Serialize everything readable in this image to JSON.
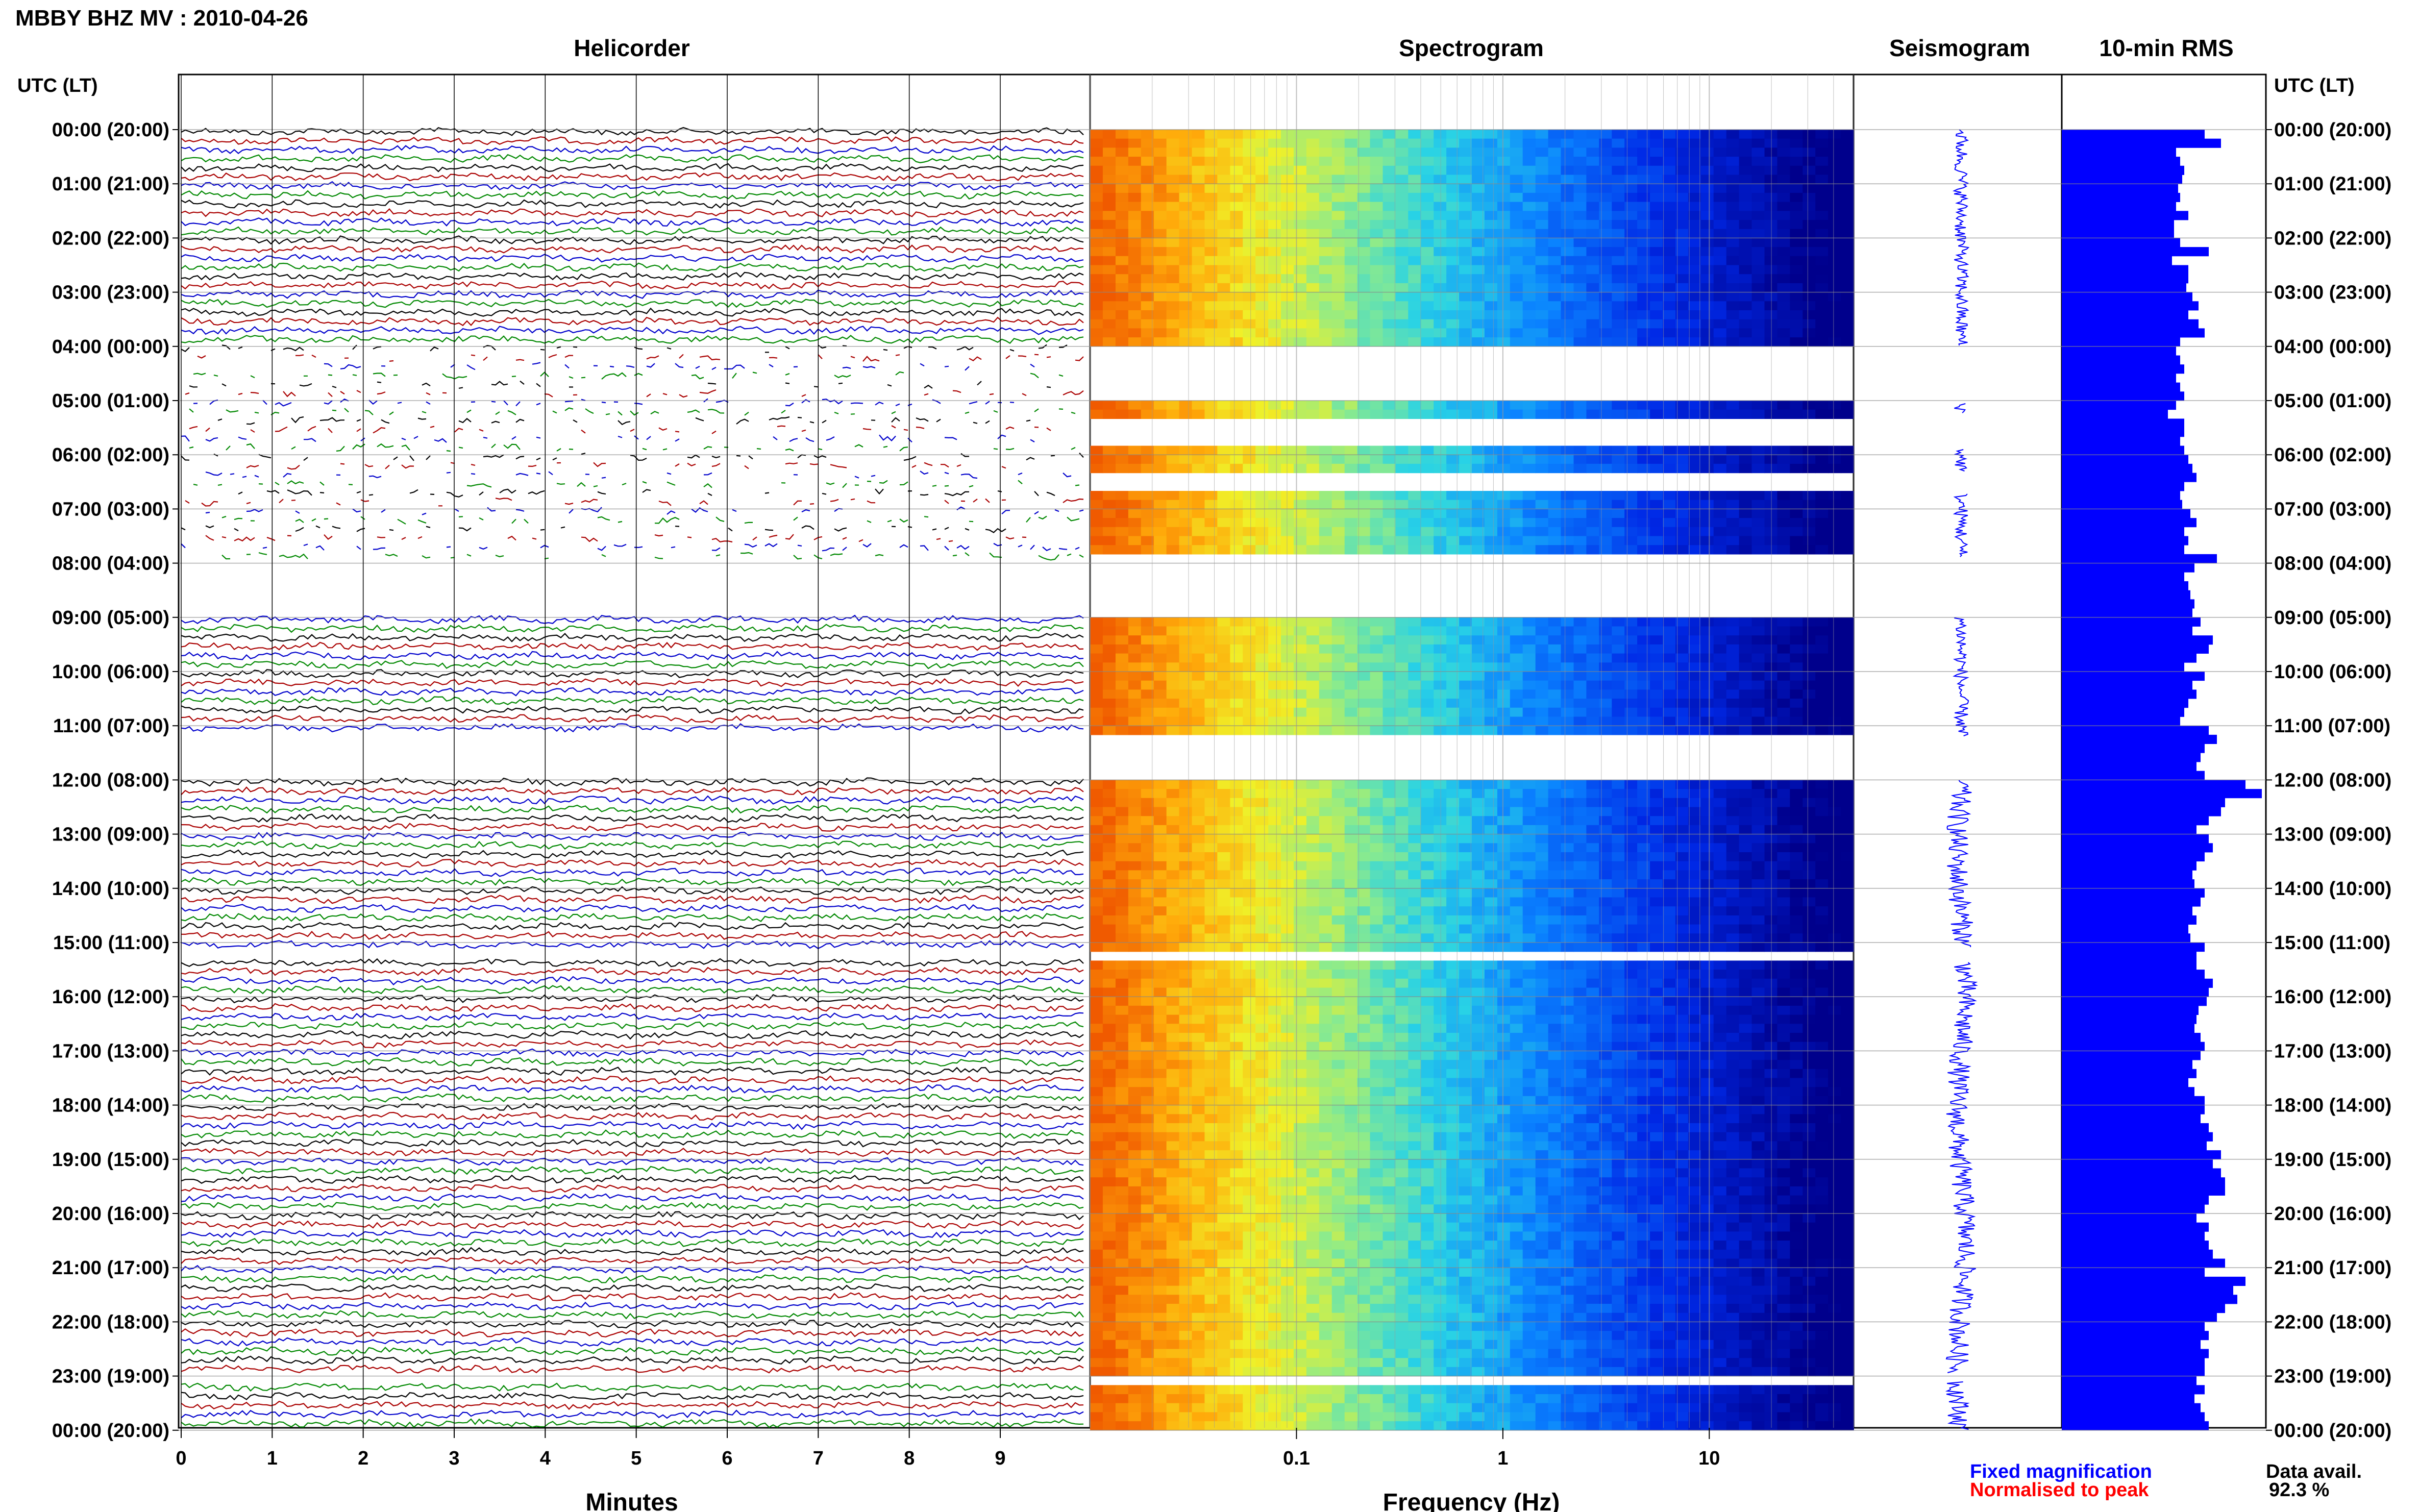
{
  "header": {
    "title": "MBBY BHZ MV : 2010-04-26",
    "utc_label_left": "UTC (LT)",
    "utc_label_right": "UTC (LT)"
  },
  "panels": {
    "helicorder": "Helicorder",
    "spectrogram": "Spectrogram",
    "seismogram": "Seismogram",
    "rms": "10-min RMS"
  },
  "axes": {
    "minutes_label": "Minutes",
    "frequency_label": "Frequency (Hz)",
    "minute_ticks": [
      "0",
      "1",
      "2",
      "3",
      "4",
      "5",
      "6",
      "7",
      "8",
      "9"
    ],
    "frequency_ticks": [
      {
        "value": 0.1,
        "label": "0.1"
      },
      {
        "value": 1,
        "label": "1"
      },
      {
        "value": 10,
        "label": "10"
      }
    ],
    "frequency_range_hz": [
      0.01,
      50
    ]
  },
  "time_labels": [
    "00:00 (20:00)",
    "01:00 (21:00)",
    "02:00 (22:00)",
    "03:00 (23:00)",
    "04:00 (00:00)",
    "05:00 (01:00)",
    "06:00 (02:00)",
    "07:00 (03:00)",
    "08:00 (04:00)",
    "09:00 (05:00)",
    "10:00 (06:00)",
    "11:00 (07:00)",
    "12:00 (08:00)",
    "13:00 (09:00)",
    "14:00 (10:00)",
    "15:00 (11:00)",
    "16:00 (12:00)",
    "17:00 (13:00)",
    "18:00 (14:00)",
    "19:00 (15:00)",
    "20:00 (16:00)",
    "21:00 (17:00)",
    "22:00 (18:00)",
    "23:00 (19:00)",
    "00:00 (20:00)"
  ],
  "legend": {
    "fixed": "Fixed magnification",
    "normalised": "Normalised to peak",
    "fixed_color": "#0000ff",
    "normalised_color": "#ff0000"
  },
  "availability": {
    "label": "Data avail.",
    "value": "92.3 %"
  },
  "colors": {
    "trace_colors": [
      "#000000",
      "#aa0000",
      "#0000cc",
      "#008800"
    ],
    "rms_bar": "#0000ff"
  },
  "chart_data": {
    "type": "heatmap",
    "description_rows": "24 hours, 6 rows of 10-min per hour",
    "gaps_hours": [
      [
        4.0,
        5.05
      ],
      [
        5.25,
        5.9
      ],
      [
        6.3,
        6.7
      ],
      [
        7.9,
        9.0
      ],
      [
        11.2,
        12.0
      ],
      [
        15.1,
        15.35
      ],
      [
        22.95,
        23.1
      ]
    ],
    "rms_10min": [
      0.7,
      0.78,
      0.56,
      0.58,
      0.6,
      0.59,
      0.57,
      0.58,
      0.56,
      0.62,
      0.55,
      0.55,
      0.58,
      0.72,
      0.54,
      0.62,
      0.62,
      0.61,
      0.64,
      0.67,
      0.62,
      0.67,
      0.7,
      0.58,
      0.56,
      0.58,
      0.6,
      0.56,
      0.58,
      0.6,
      0.56,
      0.52,
      0.6,
      0.6,
      0.58,
      0.6,
      0.62,
      0.64,
      0.66,
      0.6,
      0.58,
      0.59,
      0.63,
      0.66,
      0.6,
      0.62,
      0.6,
      0.76,
      0.65,
      0.6,
      0.62,
      0.63,
      0.65,
      0.64,
      0.68,
      0.64,
      0.74,
      0.72,
      0.66,
      0.6,
      0.7,
      0.64,
      0.66,
      0.62,
      0.6,
      0.58,
      0.72,
      0.76,
      0.7,
      0.68,
      0.66,
      0.7,
      0.9,
      0.98,
      0.8,
      0.78,
      0.72,
      0.66,
      0.72,
      0.74,
      0.7,
      0.66,
      0.64,
      0.65,
      0.7,
      0.68,
      0.64,
      0.66,
      0.62,
      0.63,
      0.7,
      0.66,
      0.66,
      0.7,
      0.74,
      0.72,
      0.71,
      0.67,
      0.66,
      0.65,
      0.68,
      0.7,
      0.68,
      0.64,
      0.66,
      0.62,
      0.65,
      0.7,
      0.7,
      0.68,
      0.72,
      0.74,
      0.71,
      0.78,
      0.74,
      0.78,
      0.8,
      0.8,
      0.72,
      0.7,
      0.66,
      0.72,
      0.7,
      0.72,
      0.74,
      0.8,
      0.7,
      0.9,
      0.84,
      0.86,
      0.8,
      0.76,
      0.7,
      0.72,
      0.68,
      0.72,
      0.7,
      0.7,
      0.66,
      0.7,
      0.65,
      0.68,
      0.7,
      0.72
    ]
  }
}
